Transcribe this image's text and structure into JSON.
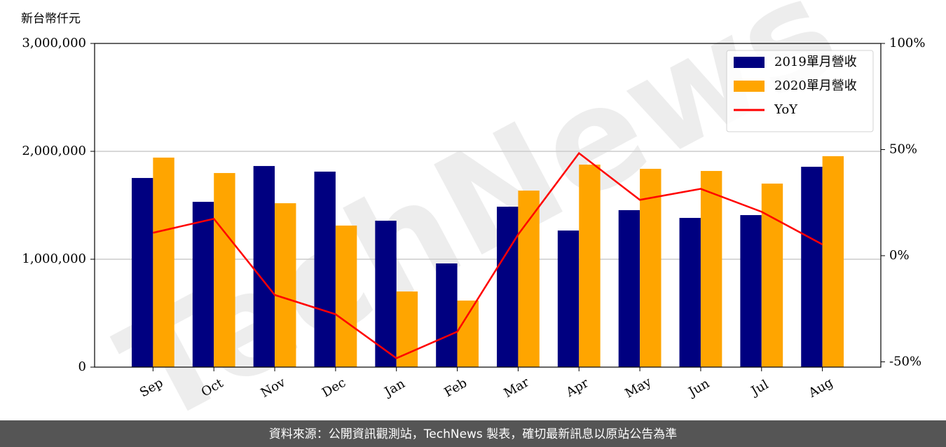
{
  "chart_data": {
    "type": "bar-line",
    "y_label": "新台幣仟元",
    "watermark": "TechNews",
    "footer": "資料來源：公開資訊觀測站，TechNews 製表，確切最新訊息以原站公告為準",
    "categories": [
      "Sep",
      "Oct",
      "Nov",
      "Dec",
      "Jan",
      "Feb",
      "Mar",
      "Apr",
      "May",
      "Jun",
      "Jul",
      "Aug"
    ],
    "series": [
      {
        "name": "2019單月營收",
        "color": "#000080",
        "type": "bar",
        "values": [
          1753000,
          1532000,
          1864000,
          1812000,
          1357000,
          961000,
          1487000,
          1266000,
          1455000,
          1383000,
          1409000,
          1857000
        ]
      },
      {
        "name": "2020單月營收",
        "color": "#ffa500",
        "type": "bar",
        "values": [
          1942000,
          1799000,
          1519000,
          1312000,
          701000,
          617000,
          1636000,
          1877000,
          1838000,
          1818000,
          1701000,
          1955000
        ]
      },
      {
        "name": "YoY",
        "color": "#ff0000",
        "type": "line",
        "axis": "y2",
        "values": [
          10.8,
          17.4,
          -18.5,
          -27.6,
          -48.3,
          -35.8,
          10.0,
          48.3,
          26.3,
          31.5,
          20.7,
          5.3
        ]
      }
    ],
    "ylim": [
      0,
      3000000
    ],
    "yticks": [
      0,
      {
        "value": 1000000,
        "label": "1,000,000"
      },
      {
        "value": 2000000,
        "label": "2,000,000"
      },
      {
        "value": 3000000,
        "label": "3,000,000"
      }
    ],
    "y2lim": [
      -52.5,
      100
    ],
    "y2ticks": [
      {
        "value": -50,
        "label": "-50%"
      },
      {
        "value": 0,
        "label": "0%"
      },
      {
        "value": 50,
        "label": "50%"
      },
      {
        "value": 100,
        "label": "100%"
      }
    ],
    "grid": true,
    "legend": "upper right"
  }
}
